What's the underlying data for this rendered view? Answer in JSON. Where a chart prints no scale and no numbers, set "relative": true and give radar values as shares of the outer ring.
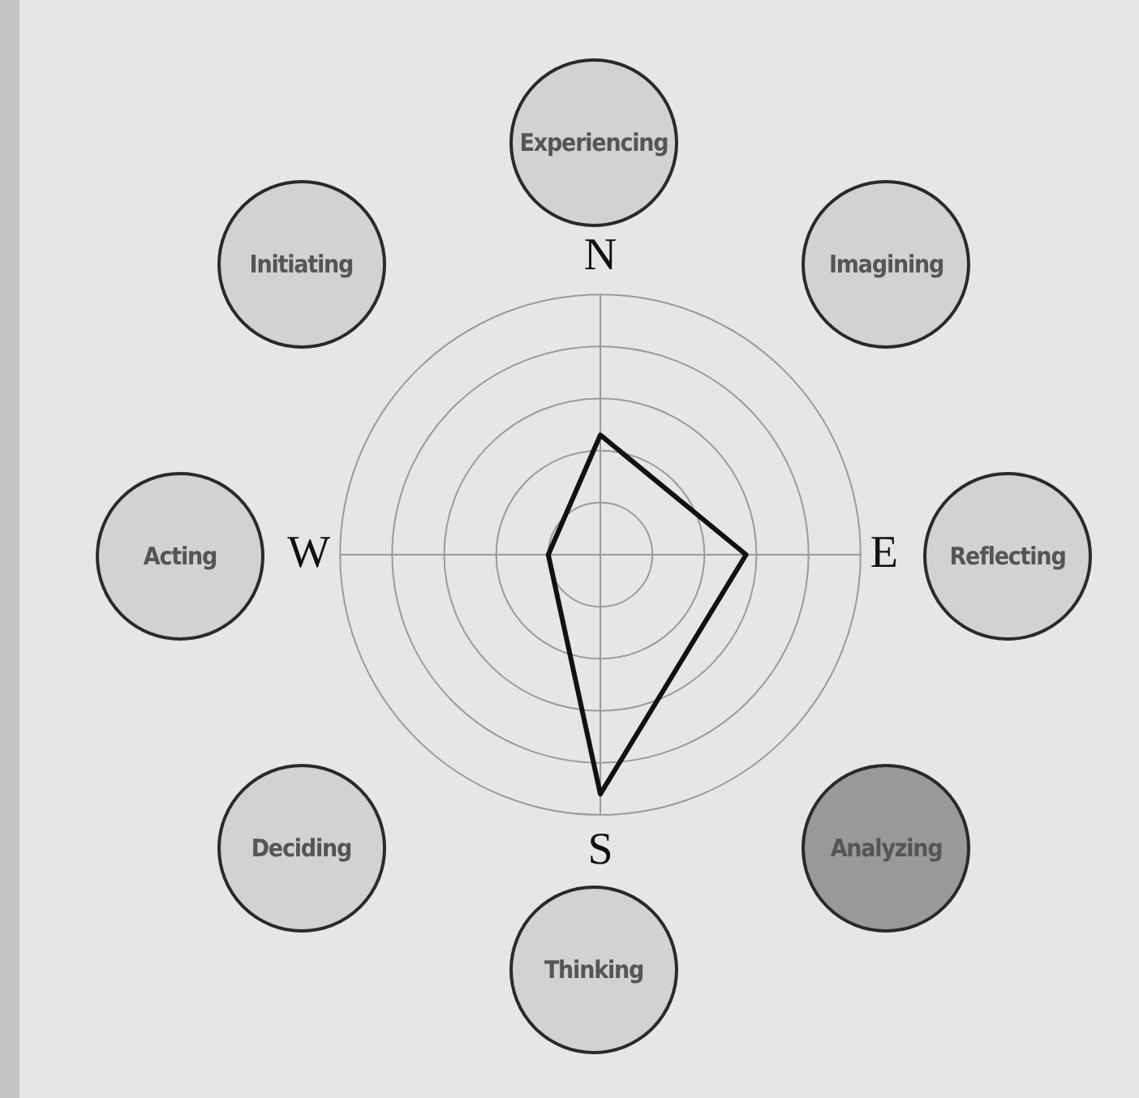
{
  "chart_data": {
    "type": "radar",
    "categories": [
      "N",
      "E",
      "S",
      "W"
    ],
    "series": [
      {
        "color": "#111111",
        "values": [
          0.46,
          0.56,
          0.92,
          0.2
        ]
      }
    ],
    "relative": true,
    "grid": true,
    "marker": "none",
    "annotations": [
      "Experiencing",
      "Imagining",
      "Reflecting",
      "Analyzing",
      "Thinking",
      "Deciding",
      "Acting",
      "Initiating"
    ]
  }
}
